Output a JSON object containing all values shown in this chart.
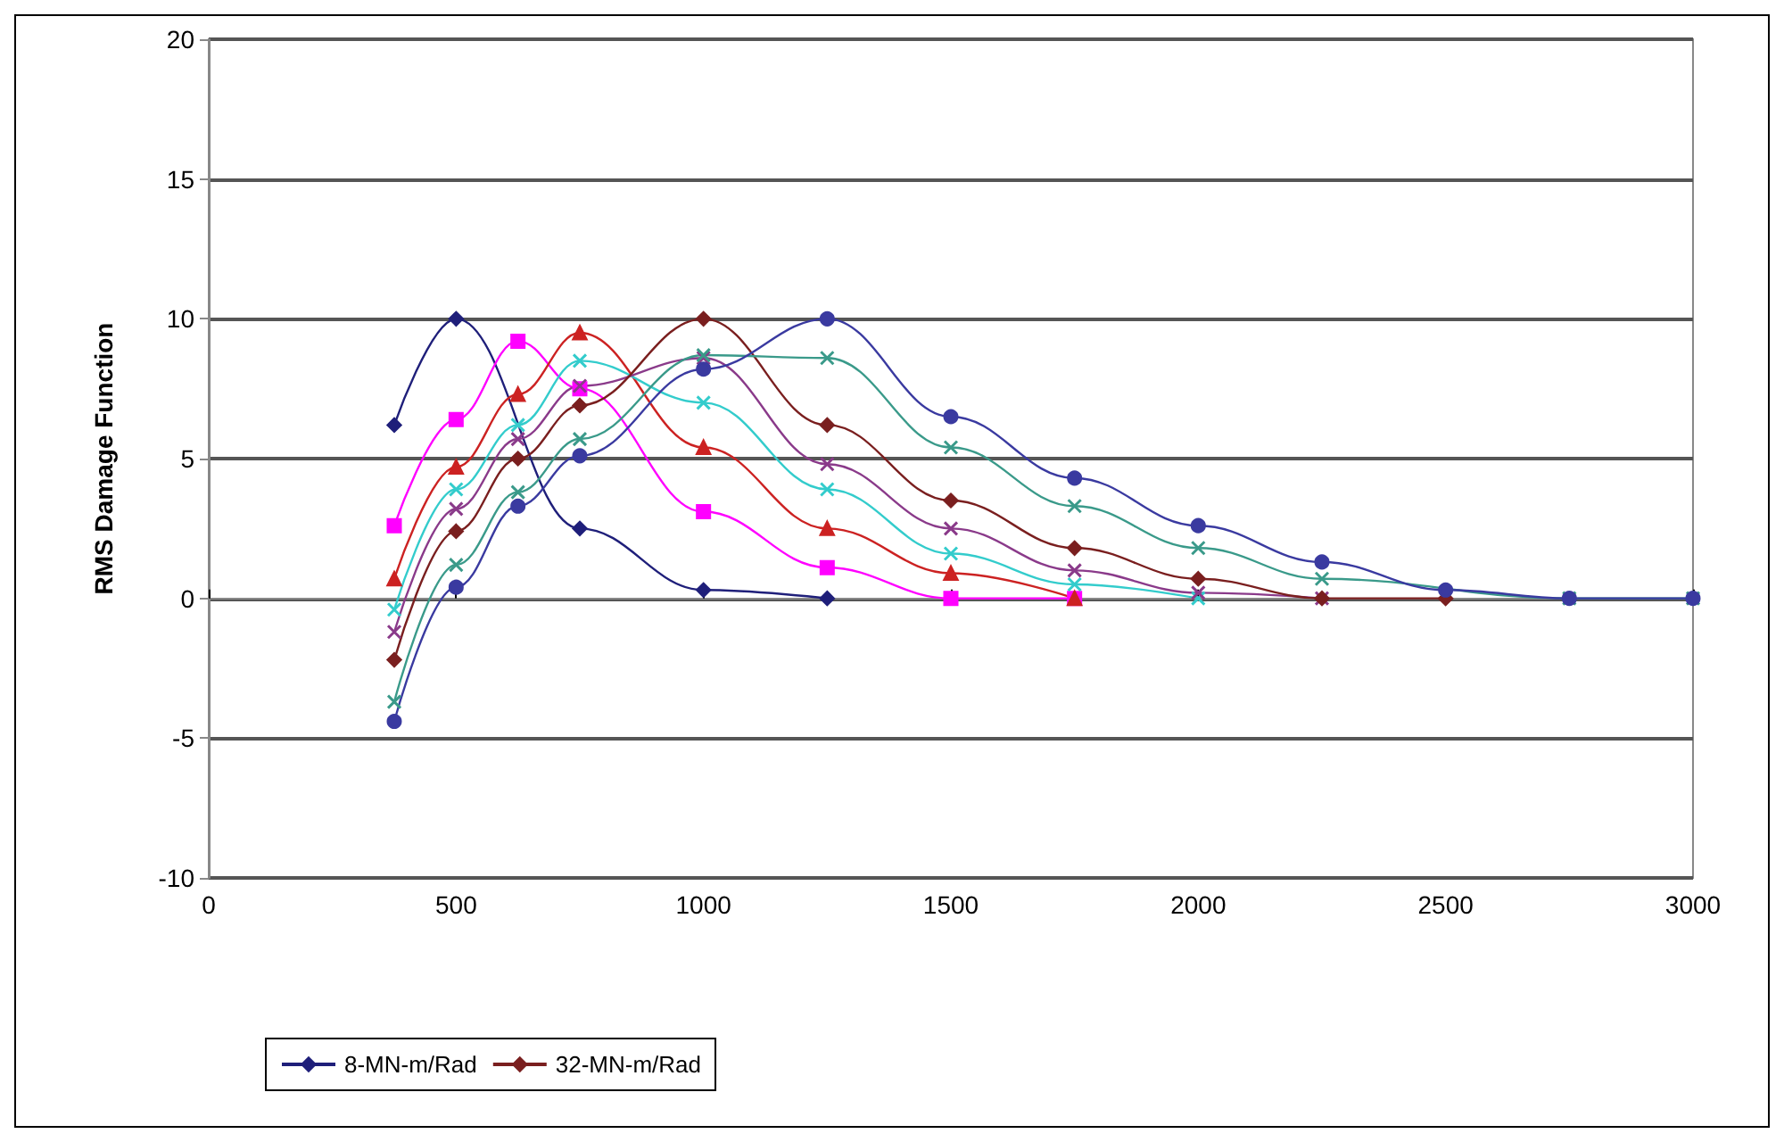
{
  "chart_data": {
    "type": "line",
    "ylabel": "RMS Damage Function",
    "x": [
      375,
      500,
      625,
      750,
      1000,
      1250,
      1500,
      1750,
      2000,
      2250,
      2500,
      2750,
      3000
    ],
    "xlim": [
      0,
      3000
    ],
    "xticks": [
      0,
      500,
      1000,
      1500,
      2000,
      2500,
      3000
    ],
    "ylim": [
      -10,
      20
    ],
    "yticks": [
      -10,
      -5,
      0,
      5,
      10,
      15,
      20
    ],
    "grid": "y",
    "legend": "bottom left",
    "series": [
      {
        "name": "8-MN-m/Rad",
        "color": "#1f1f7a",
        "marker": "diamond",
        "values": [
          6.2,
          10,
          null,
          2.5,
          0.3,
          0,
          null,
          null,
          null,
          null,
          null,
          null,
          null
        ]
      },
      {
        "color": "#ff00ff",
        "marker": "square",
        "values": [
          2.6,
          6.4,
          9.2,
          7.5,
          3.1,
          1.1,
          0,
          0,
          null,
          null,
          null,
          null,
          null
        ]
      },
      {
        "color": "#cc2222",
        "marker": "triangle",
        "values": [
          0.7,
          4.7,
          7.3,
          9.5,
          5.4,
          2.5,
          0.9,
          0,
          null,
          null,
          null,
          null,
          null
        ]
      },
      {
        "color": "#33cccc",
        "marker": "cross",
        "values": [
          -0.4,
          3.9,
          6.2,
          8.5,
          7.0,
          3.9,
          1.6,
          0.5,
          0,
          null,
          null,
          null,
          null
        ]
      },
      {
        "color": "#8a3a8a",
        "marker": "cross",
        "values": [
          -1.2,
          3.2,
          5.7,
          7.6,
          8.6,
          4.8,
          2.5,
          1.0,
          0.2,
          0,
          null,
          null,
          null
        ]
      },
      {
        "name": "32-MN-m/Rad",
        "color": "#7a1f1f",
        "marker": "diamond",
        "values": [
          -2.2,
          2.4,
          5.0,
          6.9,
          10,
          6.2,
          3.5,
          1.8,
          0.7,
          0,
          0,
          null,
          null
        ]
      },
      {
        "color": "#3a9a8a",
        "marker": "cross",
        "values": [
          -3.7,
          1.2,
          3.8,
          5.7,
          8.7,
          8.6,
          5.4,
          3.3,
          1.8,
          0.7,
          null,
          0,
          0
        ]
      },
      {
        "color": "#3a3aa0",
        "marker": "circle",
        "values": [
          -4.4,
          0.4,
          3.3,
          5.1,
          8.2,
          10,
          6.5,
          4.3,
          2.6,
          1.3,
          0.3,
          0,
          0
        ]
      }
    ]
  }
}
